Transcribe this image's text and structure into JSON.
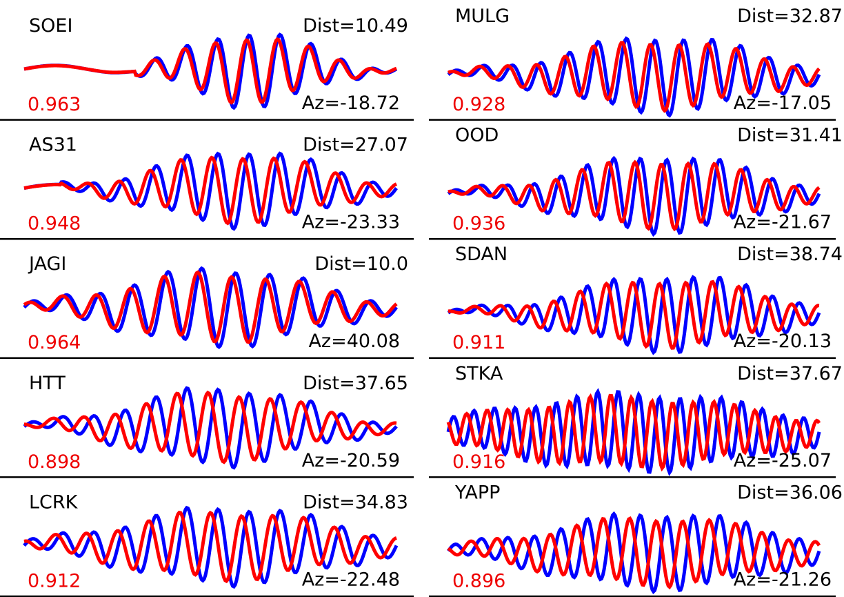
{
  "panels": [
    {
      "station": "SOEI",
      "dist": "Dist=10.49",
      "az": "Az=-18.72",
      "cc": "0.963"
    },
    {
      "station": "AS31",
      "dist": "Dist=27.07",
      "az": "Az=-23.33",
      "cc": "0.948"
    },
    {
      "station": "JAGI",
      "dist": "Dist=10.0",
      "az": "Az=40.08",
      "cc": "0.964"
    },
    {
      "station": "HTT",
      "dist": "Dist=37.65",
      "az": "Az=-20.59",
      "cc": "0.898"
    },
    {
      "station": "LCRK",
      "dist": "Dist=34.83",
      "az": "Az=-22.48",
      "cc": "0.912"
    },
    {
      "station": "MULG",
      "dist": "Dist=32.87",
      "az": "Az=-17.05",
      "cc": "0.928"
    },
    {
      "station": "OOD",
      "dist": "Dist=31.41",
      "az": "Az=-21.67",
      "cc": "0.936"
    },
    {
      "station": "SDAN",
      "dist": "Dist=38.74",
      "az": "Az=-20.13",
      "cc": "0.911"
    },
    {
      "station": "STKA",
      "dist": "Dist=37.67",
      "az": "Az=-25.07",
      "cc": "0.916"
    },
    {
      "station": "YAPP",
      "dist": "Dist=36.06",
      "az": "Az=-21.26",
      "cc": "0.896"
    }
  ]
}
